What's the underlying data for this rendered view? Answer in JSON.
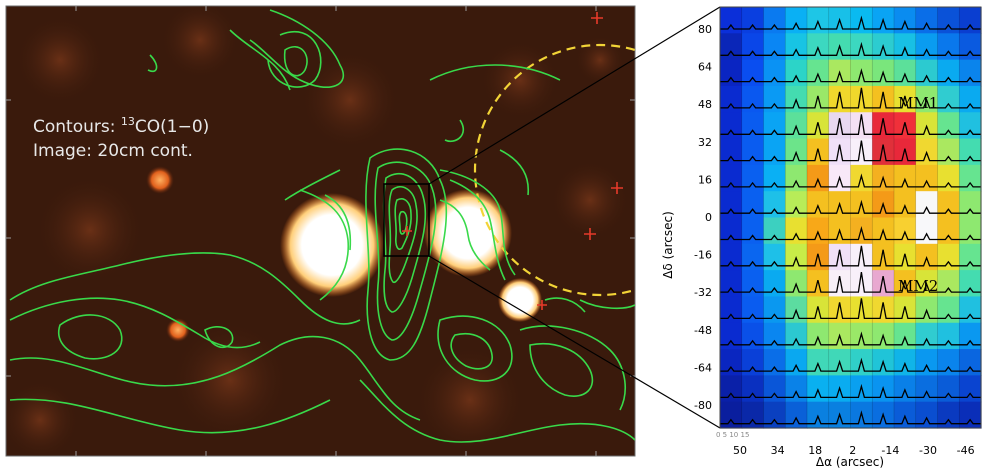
{
  "left_panel": {
    "legend_line1_prefix": "Contours: ",
    "legend_line1_sup": "13",
    "legend_line1_suffix": "CO(1−0)",
    "legend_line2": "Image: 20cm cont.",
    "colors": {
      "background": "#3a1a0c",
      "contour": "#39d94a",
      "circle": "#f2d437",
      "source_core": "#ffffff",
      "source_edge": "#ff9a33"
    }
  },
  "right_panel": {
    "yaxis_label": "Δδ (arcsec)",
    "xaxis_label": "Δα (arcsec)",
    "yticks": [
      "80",
      "64",
      "48",
      "32",
      "16",
      "0",
      "-16",
      "-32",
      "-48",
      "-64",
      "-80"
    ],
    "xticks": [
      "50",
      "34",
      "18",
      "2",
      "-14",
      "-30",
      "-46"
    ],
    "annotations": [
      "MM1",
      "MM2"
    ]
  }
}
